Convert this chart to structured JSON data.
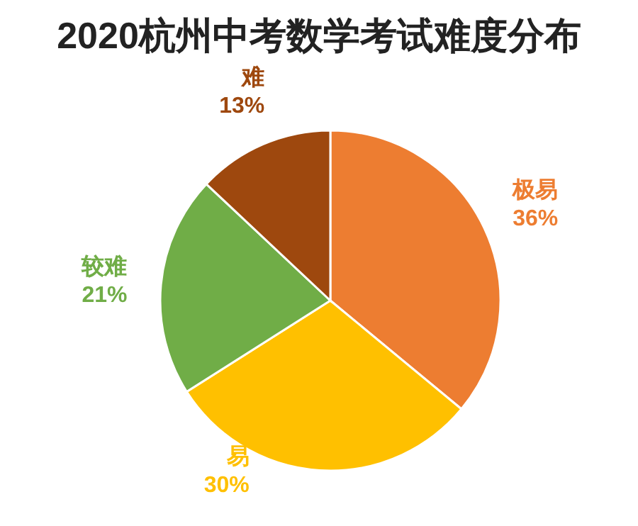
{
  "chart_data": {
    "type": "pie",
    "title": "2020杭州中考数学考试难度分布",
    "categories": [
      "极易",
      "易",
      "较难",
      "难"
    ],
    "values": [
      36,
      30,
      21,
      13
    ],
    "value_labels": [
      "36%",
      "30%",
      "21%",
      "13%"
    ],
    "colors": [
      "#ed7d31",
      "#ffc000",
      "#70ad47",
      "#9e480e"
    ]
  }
}
